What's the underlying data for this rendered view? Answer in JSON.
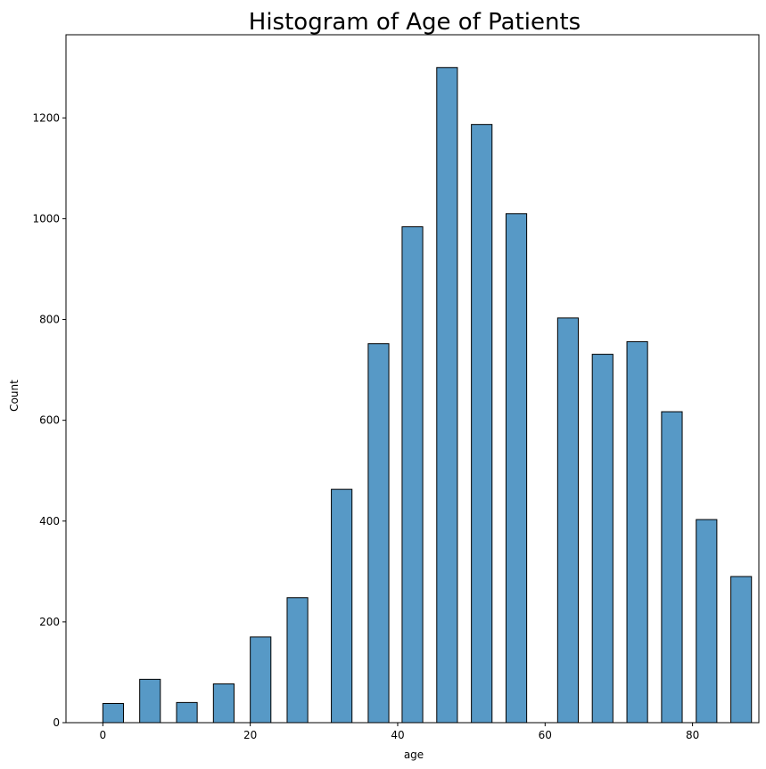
{
  "chart_data": {
    "type": "bar",
    "title": "Histogram of Age of Patients",
    "xlabel": "age",
    "ylabel": "Count",
    "xlim": [
      -5,
      89
    ],
    "ylim": [
      0,
      1365
    ],
    "xticks": [
      0,
      20,
      40,
      60,
      80
    ],
    "yticks": [
      0,
      200,
      400,
      600,
      800,
      1000,
      1200
    ],
    "bin_width": 2.8,
    "grid": false,
    "bar_color": "#5799c6",
    "edge_color": "#000000",
    "bins": [
      {
        "x": 0,
        "count": 38
      },
      {
        "x": 5,
        "count": 86
      },
      {
        "x": 10,
        "count": 40
      },
      {
        "x": 15,
        "count": 77
      },
      {
        "x": 20,
        "count": 170
      },
      {
        "x": 25,
        "count": 248
      },
      {
        "x": 31,
        "count": 463
      },
      {
        "x": 36,
        "count": 752
      },
      {
        "x": 40.6,
        "count": 984
      },
      {
        "x": 45.3,
        "count": 1300
      },
      {
        "x": 50,
        "count": 1187
      },
      {
        "x": 54.7,
        "count": 1010
      },
      {
        "x": 61.7,
        "count": 803
      },
      {
        "x": 66.4,
        "count": 731
      },
      {
        "x": 71.1,
        "count": 756
      },
      {
        "x": 75.8,
        "count": 617
      },
      {
        "x": 80.5,
        "count": 403
      },
      {
        "x": 85.2,
        "count": 290
      }
    ]
  }
}
